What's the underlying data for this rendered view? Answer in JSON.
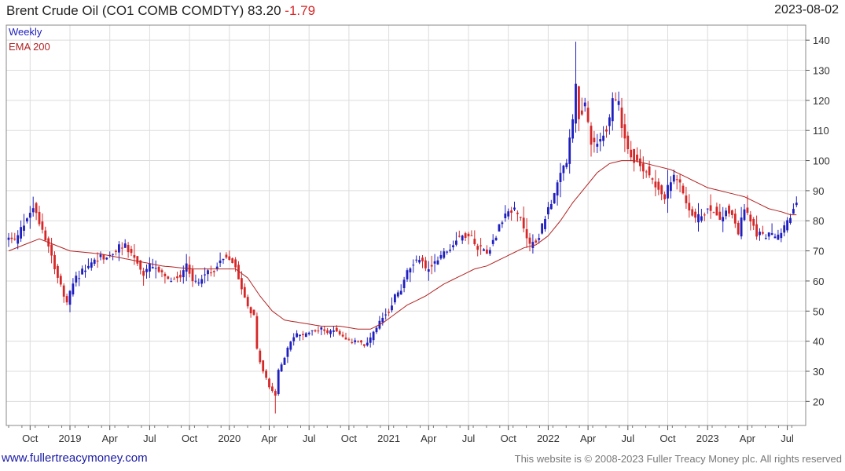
{
  "header": {
    "title": "Brent Crude Oil  (CO1 COMB COMDTY)",
    "last": "83.20",
    "change": "-1.79",
    "date": "2023-08-02"
  },
  "legend": {
    "weekly": "Weekly",
    "ema": "EMA 200"
  },
  "footer": {
    "site": "www.fullertreacymoney.com",
    "copyright": "This website is © 2008-2023 Fuller Treacy Money plc. All rights reserved"
  },
  "colors": {
    "up": "#1f1fbf",
    "down": "#d62728",
    "ema": "#b22222",
    "grid": "#dcdcdc"
  },
  "chart_data": {
    "type": "candlestick",
    "frequency": "weekly",
    "ylim": [
      12,
      145
    ],
    "yticks": [
      20,
      30,
      40,
      50,
      60,
      70,
      80,
      90,
      100,
      110,
      120,
      130,
      140
    ],
    "xticks": [
      {
        "label": "Oct",
        "week": 7
      },
      {
        "label": "2019",
        "week": 20
      },
      {
        "label": "Apr",
        "week": 33
      },
      {
        "label": "Jul",
        "week": 46
      },
      {
        "label": "Oct",
        "week": 59
      },
      {
        "label": "2020",
        "week": 72
      },
      {
        "label": "Apr",
        "week": 85
      },
      {
        "label": "Jul",
        "week": 98
      },
      {
        "label": "Oct",
        "week": 111
      },
      {
        "label": "2021",
        "week": 124
      },
      {
        "label": "Apr",
        "week": 137
      },
      {
        "label": "Jul",
        "week": 150
      },
      {
        "label": "Oct",
        "week": 163
      },
      {
        "label": "2022",
        "week": 176
      },
      {
        "label": "Apr",
        "week": 189
      },
      {
        "label": "Jul",
        "week": 202
      },
      {
        "label": "Oct",
        "week": 215
      },
      {
        "label": "2023",
        "week": 228
      },
      {
        "label": "Apr",
        "week": 241
      },
      {
        "label": "Jul",
        "week": 254
      }
    ],
    "anchors": [
      [
        0,
        74
      ],
      [
        2,
        73
      ],
      [
        5,
        79
      ],
      [
        8,
        85
      ],
      [
        10,
        80
      ],
      [
        13,
        72
      ],
      [
        15,
        65
      ],
      [
        17,
        58
      ],
      [
        19,
        52
      ],
      [
        21,
        60
      ],
      [
        24,
        63
      ],
      [
        27,
        66
      ],
      [
        30,
        68
      ],
      [
        33,
        68
      ],
      [
        36,
        71
      ],
      [
        38,
        72
      ],
      [
        40,
        69
      ],
      [
        42,
        66
      ],
      [
        44,
        62
      ],
      [
        46,
        65
      ],
      [
        48,
        64
      ],
      [
        50,
        62
      ],
      [
        52,
        60
      ],
      [
        54,
        61
      ],
      [
        56,
        62
      ],
      [
        58,
        66
      ],
      [
        60,
        60
      ],
      [
        62,
        60
      ],
      [
        64,
        62
      ],
      [
        66,
        63
      ],
      [
        68,
        65
      ],
      [
        70,
        68
      ],
      [
        72,
        68
      ],
      [
        74,
        65
      ],
      [
        76,
        58
      ],
      [
        78,
        52
      ],
      [
        80,
        48
      ],
      [
        81,
        37
      ],
      [
        83,
        30
      ],
      [
        85,
        25
      ],
      [
        87,
        22
      ],
      [
        88,
        30
      ],
      [
        90,
        35
      ],
      [
        92,
        40
      ],
      [
        94,
        42
      ],
      [
        96,
        42
      ],
      [
        98,
        43
      ],
      [
        100,
        44
      ],
      [
        102,
        44
      ],
      [
        104,
        43
      ],
      [
        106,
        44
      ],
      [
        108,
        42
      ],
      [
        110,
        40
      ],
      [
        112,
        40
      ],
      [
        114,
        40
      ],
      [
        116,
        38
      ],
      [
        118,
        41
      ],
      [
        120,
        44
      ],
      [
        122,
        48
      ],
      [
        124,
        50
      ],
      [
        126,
        55
      ],
      [
        128,
        57
      ],
      [
        130,
        63
      ],
      [
        132,
        66
      ],
      [
        134,
        68
      ],
      [
        136,
        64
      ],
      [
        138,
        65
      ],
      [
        140,
        68
      ],
      [
        142,
        69
      ],
      [
        144,
        71
      ],
      [
        146,
        74
      ],
      [
        148,
        75
      ],
      [
        150,
        76
      ],
      [
        152,
        72
      ],
      [
        154,
        71
      ],
      [
        156,
        70
      ],
      [
        158,
        73
      ],
      [
        160,
        78
      ],
      [
        162,
        82
      ],
      [
        164,
        84
      ],
      [
        166,
        82
      ],
      [
        168,
        78
      ],
      [
        170,
        72
      ],
      [
        172,
        73
      ],
      [
        174,
        78
      ],
      [
        176,
        85
      ],
      [
        178,
        88
      ],
      [
        180,
        95
      ],
      [
        182,
        100
      ],
      [
        184,
        112
      ],
      [
        185,
        125
      ],
      [
        186,
        115
      ],
      [
        188,
        118
      ],
      [
        190,
        107
      ],
      [
        192,
        105
      ],
      [
        194,
        110
      ],
      [
        196,
        113
      ],
      [
        197,
        120
      ],
      [
        199,
        118
      ],
      [
        200,
        112
      ],
      [
        202,
        104
      ],
      [
        204,
        101
      ],
      [
        206,
        98
      ],
      [
        208,
        97
      ],
      [
        210,
        94
      ],
      [
        212,
        91
      ],
      [
        214,
        88
      ],
      [
        216,
        93
      ],
      [
        218,
        95
      ],
      [
        220,
        88
      ],
      [
        222,
        84
      ],
      [
        224,
        80
      ],
      [
        226,
        82
      ],
      [
        228,
        84
      ],
      [
        230,
        84
      ],
      [
        232,
        80
      ],
      [
        234,
        84
      ],
      [
        236,
        82
      ],
      [
        238,
        76
      ],
      [
        240,
        84
      ],
      [
        242,
        80
      ],
      [
        244,
        76
      ],
      [
        246,
        75
      ],
      [
        248,
        76
      ],
      [
        250,
        74
      ],
      [
        252,
        76
      ],
      [
        254,
        80
      ],
      [
        256,
        84
      ],
      [
        257,
        85
      ]
    ],
    "ema200_anchors": [
      [
        0,
        70
      ],
      [
        10,
        74
      ],
      [
        20,
        70
      ],
      [
        30,
        69
      ],
      [
        40,
        67
      ],
      [
        50,
        65
      ],
      [
        60,
        64
      ],
      [
        70,
        64
      ],
      [
        74,
        64
      ],
      [
        78,
        61
      ],
      [
        82,
        55
      ],
      [
        86,
        50
      ],
      [
        90,
        47
      ],
      [
        96,
        46
      ],
      [
        102,
        45
      ],
      [
        108,
        45
      ],
      [
        114,
        44
      ],
      [
        118,
        44
      ],
      [
        122,
        46
      ],
      [
        126,
        49
      ],
      [
        130,
        52
      ],
      [
        136,
        55
      ],
      [
        142,
        59
      ],
      [
        148,
        62
      ],
      [
        152,
        64
      ],
      [
        156,
        65
      ],
      [
        160,
        67
      ],
      [
        164,
        69
      ],
      [
        168,
        71
      ],
      [
        172,
        72
      ],
      [
        176,
        75
      ],
      [
        180,
        80
      ],
      [
        184,
        86
      ],
      [
        188,
        91
      ],
      [
        192,
        96
      ],
      [
        196,
        99
      ],
      [
        200,
        100
      ],
      [
        204,
        100
      ],
      [
        208,
        99
      ],
      [
        212,
        98
      ],
      [
        216,
        97
      ],
      [
        220,
        95
      ],
      [
        224,
        93
      ],
      [
        228,
        91
      ],
      [
        232,
        90
      ],
      [
        236,
        89
      ],
      [
        240,
        88
      ],
      [
        244,
        86
      ],
      [
        248,
        84
      ],
      [
        252,
        83
      ],
      [
        255,
        82
      ],
      [
        257,
        82
      ]
    ]
  }
}
